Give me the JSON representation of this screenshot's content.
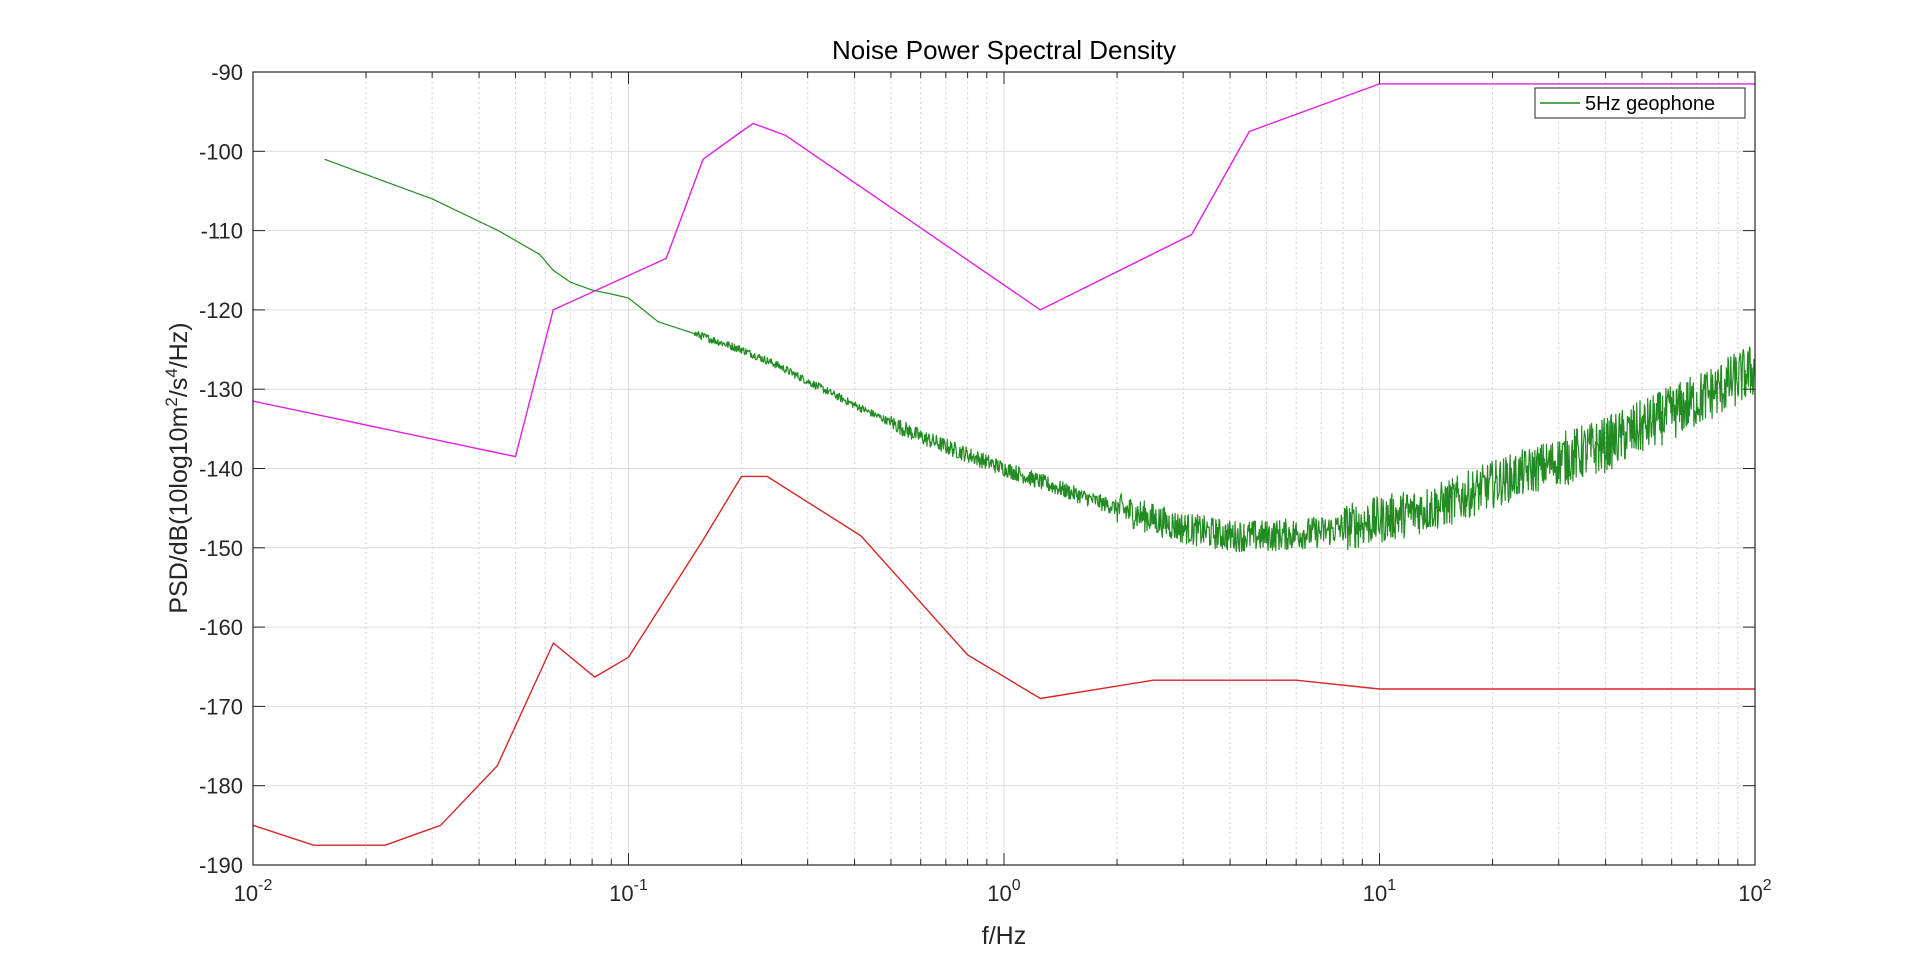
{
  "chart_data": {
    "type": "line",
    "title": "Noise Power Spectral Density",
    "xlabel": "f/Hz",
    "ylabel": "PSD/dB(10log10m2/s4/Hz)",
    "ylabel_parts": {
      "pre": "PSD/dB(10log10m",
      "sup1": "2",
      "mid": "/s",
      "sup2": "4",
      "post": "/Hz)"
    },
    "xscale": "log",
    "xlim": [
      0.01,
      100
    ],
    "ylim": [
      -190,
      -90
    ],
    "grid": true,
    "legend_placement": "top-right",
    "x_ticks": [
      {
        "value": 0.01,
        "base": "10",
        "exp": "-2"
      },
      {
        "value": 0.1,
        "base": "10",
        "exp": "-1"
      },
      {
        "value": 1,
        "base": "10",
        "exp": "0"
      },
      {
        "value": 10,
        "base": "10",
        "exp": "1"
      },
      {
        "value": 100,
        "base": "10",
        "exp": "2"
      }
    ],
    "y_ticks": [
      {
        "value": -90,
        "label": "-90"
      },
      {
        "value": -100,
        "label": "-100"
      },
      {
        "value": -110,
        "label": "-110"
      },
      {
        "value": -120,
        "label": "-120"
      },
      {
        "value": -130,
        "label": "-130"
      },
      {
        "value": -140,
        "label": "-140"
      },
      {
        "value": -150,
        "label": "-150"
      },
      {
        "value": -160,
        "label": "-160"
      },
      {
        "value": -170,
        "label": "-170"
      },
      {
        "value": -180,
        "label": "-180"
      },
      {
        "value": -190,
        "label": "-190"
      }
    ],
    "series": [
      {
        "name": "5Hz geophone",
        "color": "#228B22",
        "noisy": true,
        "x": [
          0.0155,
          0.03,
          0.045,
          0.058,
          0.063,
          0.07,
          0.08,
          0.09,
          0.1,
          0.12,
          0.15,
          0.2,
          0.25,
          0.3,
          0.4,
          0.6,
          1.0,
          1.5,
          2.0,
          3.0,
          4.0,
          5.0,
          7.0,
          10.0,
          15.0,
          20.0,
          30.0,
          40.0,
          60.0,
          80.0,
          100.0
        ],
        "y": [
          -101,
          -106,
          -110,
          -113,
          -115,
          -116.5,
          -117.5,
          -118,
          -118.5,
          -121.5,
          -123,
          -125,
          -127,
          -129,
          -132,
          -136,
          -140,
          -143,
          -145,
          -147.5,
          -148.5,
          -148.5,
          -148,
          -146.5,
          -144.5,
          -142,
          -139,
          -137,
          -133,
          -130,
          -127.5
        ]
      },
      {
        "name": "",
        "color": "#E020E0",
        "noisy": false,
        "x": [
          0.01,
          0.05,
          0.063,
          0.126,
          0.158,
          0.2,
          0.215,
          0.262,
          1.25,
          3.16,
          4.5,
          10,
          100
        ],
        "y": [
          -131.5,
          -138.5,
          -120,
          -113.5,
          -101,
          -97.5,
          -96.5,
          -98,
          -120,
          -110.5,
          -97.5,
          -91.5,
          -91.5
        ]
      },
      {
        "name": "",
        "color": "#D62728",
        "noisy": false,
        "x": [
          0.01,
          0.0145,
          0.0225,
          0.0316,
          0.0447,
          0.0631,
          0.0813,
          0.1,
          0.158,
          0.2,
          0.234,
          0.416,
          0.8,
          1.25,
          2.5,
          6.0,
          10,
          100
        ],
        "y": [
          -185,
          -187.5,
          -187.5,
          -185,
          -177.5,
          -162,
          -166.3,
          -163.8,
          -149,
          -141,
          -141,
          -148.5,
          -163.5,
          -169,
          -166.7,
          -166.7,
          -167.8,
          -167.8
        ]
      }
    ]
  }
}
